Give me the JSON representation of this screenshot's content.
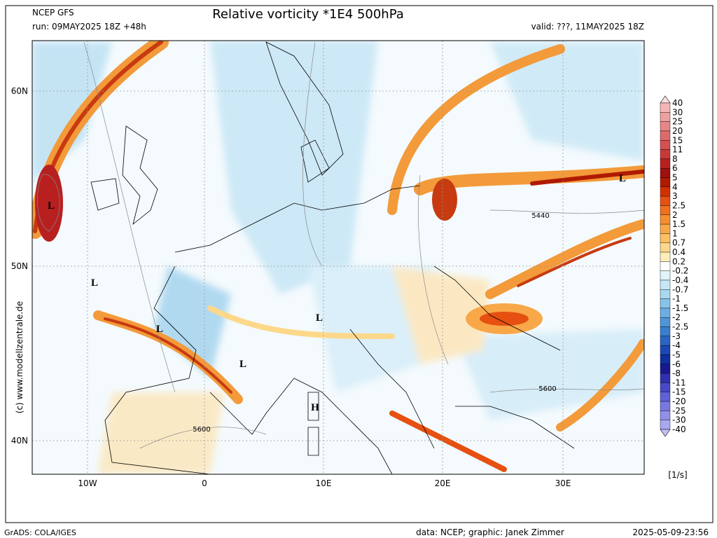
{
  "header": {
    "model": "NCEP GFS",
    "run": "run: 09MAY2025 18Z +48h",
    "title": "Relative vorticity *1E4 500hPa",
    "valid": "valid: ???, 11MAY2025 18Z"
  },
  "map": {
    "lat_labels": [
      "60N",
      "50N",
      "40N"
    ],
    "lon_labels": [
      "10W",
      "0",
      "10E",
      "20E",
      "30E"
    ],
    "low_labels": [
      "L",
      "L",
      "L",
      "L",
      "L",
      "L"
    ],
    "high_labels": [
      "H"
    ],
    "contour_labels": [
      "5440",
      "5600",
      "5600"
    ],
    "copyright": "(c) www.modellzentrale.de"
  },
  "colorbar": {
    "labels": [
      "40",
      "30",
      "25",
      "20",
      "15",
      "11",
      "8",
      "6",
      "5",
      "4",
      "3",
      "2.5",
      "2",
      "1.5",
      "1",
      "0.7",
      "0.4",
      "0.2",
      "-0.2",
      "-0.4",
      "-0.7",
      "-1",
      "-1.5",
      "-2",
      "-2.5",
      "-3",
      "-4",
      "-5",
      "-6",
      "-8",
      "-11",
      "-15",
      "-20",
      "-25",
      "-30",
      "-40"
    ],
    "colors": [
      "#fbe0e0",
      "#f5b5b5",
      "#eea0a0",
      "#e68686",
      "#dd6a6a",
      "#d55050",
      "#c83a3a",
      "#b82020",
      "#a01010",
      "#b01a00",
      "#d23000",
      "#e65010",
      "#f07020",
      "#f59030",
      "#f8a848",
      "#fbc060",
      "#fdd88a",
      "#fdeeb8",
      "#ffffff",
      "#e0f4fb",
      "#c6e8f6",
      "#a8d8f0",
      "#88c4ea",
      "#6aaee2",
      "#4f96d8",
      "#3a7ed0",
      "#2a64c4",
      "#1c48b4",
      "#1030a0",
      "#1a1890",
      "#3030b0",
      "#4848c8",
      "#6060d8",
      "#7878e0",
      "#9090e8",
      "#a8a8f0",
      "#c0c0f4"
    ],
    "unit": "[1/s]"
  },
  "footer": {
    "left": "GrADS: COLA/IGES",
    "center": "data: NCEP; graphic: Janek Zimmer",
    "right": "2025-05-09-23:56"
  }
}
